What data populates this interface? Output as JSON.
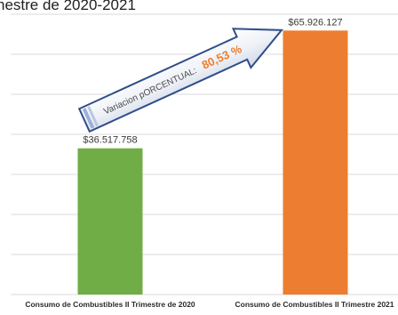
{
  "title_partial": "nestre de 2020-2021",
  "colors": {
    "bar_2020": "#70ad47",
    "bar_2021": "#ed7d31",
    "grid": "#d9d9d9",
    "percent_text": "#ed7d31",
    "arrow_border": "#2f4e8a"
  },
  "annotation": {
    "prefix": "Variacion pORCENTUAL:",
    "percent": "80,53 %"
  },
  "chart_data": {
    "type": "bar",
    "categories": [
      "Consumo de Combustibles II Trimestre de 2020",
      "Consumo de Combustibles II Trimestre 2021"
    ],
    "values": [
      36517758,
      65926127
    ],
    "data_labels": [
      "$36.517.758",
      "$65.926.127"
    ],
    "ylim": [
      0,
      70000000
    ],
    "grid": true,
    "title": "",
    "xlabel": "",
    "ylabel": ""
  }
}
